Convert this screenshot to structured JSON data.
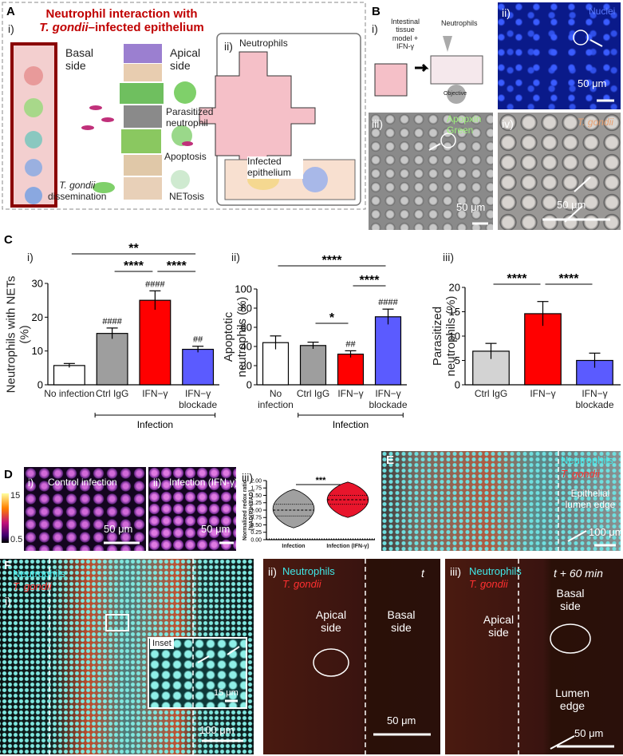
{
  "figure": {
    "A": {
      "letter": "A",
      "sub_i": "i)",
      "sub_ii": "ii)",
      "title_line1": "Neutrophil interaction with",
      "title_italic": "T. gondii",
      "title_rest": "–infected epithelium",
      "basal_side": "Basal side",
      "apical_side": "Apical side",
      "parasitized": "Parasitized neutrophil",
      "apoptosis": "Apoptosis",
      "netosis": "NETosis",
      "dissemination_italic": "T. gondii",
      "dissemination": "dissemination",
      "neutrophils": "Neutrophils",
      "infected_epithelium": "Infected epithelium"
    },
    "B": {
      "letter": "B",
      "sub_i": "i)",
      "model": "Intestinal tissue model + IFN-γ",
      "neutrophils": "Neutrophils",
      "objective": "Objective",
      "sub_ii": "ii)",
      "nuclei": "Nuclei",
      "scale_ii": "50 μm",
      "sub_iii": "iii)",
      "apopxin": "Apopxin Green",
      "scale_iii": "50 μm",
      "sub_iv": "iv)",
      "tgondii": "T. gondii",
      "scale_iv": "50 μm"
    },
    "C": {
      "letter": "C"
    },
    "D": {
      "letter": "D",
      "sub_i": "i)",
      "control": "Control infection",
      "scale_i": "50 μm",
      "sub_ii": "ii)",
      "ifn": "Infection (IFN-γ)",
      "scale_ii": "50 μm",
      "colorbar_max": 15,
      "colorbar_min": 0.5
    },
    "E": {
      "letter": "E",
      "neutrophils": "Neutrophils",
      "tgondii": "T. gondii",
      "edge": "Epithelial lumen edge",
      "scale": "100 μm"
    },
    "F": {
      "letter": "F",
      "sub_i": "i)",
      "neutrophils_i": "Neutrophils",
      "tgondii_i": "T. gondii",
      "inset": "Inset",
      "scale_inset": "15 μm",
      "scale_i": "100 μm",
      "sub_ii": "ii)",
      "neutrophils_ii": "Neutrophils",
      "tgondii_ii": "T. gondii",
      "time_ii": "t",
      "apical_ii": "Apical side",
      "basal_ii": "Basal side",
      "scale_ii": "50 μm",
      "sub_iii": "iii)",
      "neutrophils_iii": "Neutrophils",
      "tgondii_iii": "T. gondii",
      "time_iii": "t + 60 min",
      "basal_iii": "Basal side",
      "apical_iii": "Apical side",
      "lumen_iii": "Lumen edge",
      "scale_iii": "50 μm"
    }
  },
  "chart_data": [
    {
      "type": "bar",
      "panel": "i)",
      "ylabel": "Neutrophils with NETs (%)",
      "categories": [
        "No infection",
        "Ctrl IgG",
        "IFN−γ",
        "IFN−γ blockade"
      ],
      "values": [
        5.7,
        15.2,
        25,
        10.5
      ],
      "errors": [
        0.6,
        1.6,
        2.8,
        0.9
      ],
      "colors": [
        "#ffffff",
        "#9e9e9e",
        "#ff0000",
        "#5b5bff"
      ],
      "ylim": [
        0,
        30
      ],
      "yticks": [
        0,
        10,
        20,
        30
      ],
      "hash_marks": [
        {
          "index": 1,
          "label": "####"
        },
        {
          "index": 2,
          "label": "####"
        },
        {
          "index": 3,
          "label": "##"
        }
      ],
      "brackets": [
        {
          "from": 0,
          "to": 3,
          "label": "**"
        },
        {
          "from": 1,
          "to": 2,
          "label": "****"
        },
        {
          "from": 2,
          "to": 3,
          "label": "****"
        }
      ],
      "group": {
        "from": 1,
        "to": 3,
        "label": "Infection"
      }
    },
    {
      "type": "bar",
      "panel": "ii)",
      "ylabel": "Apoptotic neutrophils (%)",
      "categories": [
        "No infection",
        "Ctrl IgG",
        "IFN−γ",
        "IFN−γ blockade"
      ],
      "values": [
        44,
        41,
        32,
        71
      ],
      "errors": [
        7,
        3.5,
        3.5,
        8
      ],
      "colors": [
        "#ffffff",
        "#9e9e9e",
        "#ff0000",
        "#5b5bff"
      ],
      "ylim": [
        0,
        100
      ],
      "yticks": [
        0,
        20,
        40,
        60,
        80,
        100
      ],
      "hash_marks": [
        {
          "index": 2,
          "label": "##"
        },
        {
          "index": 3,
          "label": "####"
        }
      ],
      "brackets": [
        {
          "from": 0,
          "to": 3,
          "label": "****"
        },
        {
          "from": 2,
          "to": 3,
          "label": "****"
        },
        {
          "from": 1,
          "to": 2,
          "label": "*"
        }
      ],
      "group": {
        "from": 1,
        "to": 3,
        "label": "Infection"
      }
    },
    {
      "type": "bar",
      "panel": "iii)",
      "ylabel": "Parasitized neutrophils (%)",
      "categories": [
        "Ctrl IgG",
        "IFN−γ",
        "IFN−γ blockade"
      ],
      "values": [
        6.9,
        14.6,
        5.0
      ],
      "errors": [
        1.6,
        2.5,
        1.5
      ],
      "colors": [
        "#d3d3d3",
        "#ff0000",
        "#5b5bff"
      ],
      "ylim": [
        0,
        20
      ],
      "yticks": [
        0,
        5,
        10,
        15,
        20
      ],
      "brackets": [
        {
          "from": 0,
          "to": 1,
          "label": "****"
        },
        {
          "from": 1,
          "to": 2,
          "label": "****"
        }
      ]
    },
    {
      "type": "violin",
      "panel": "iii)",
      "ylabel": "Normalized redox ratio [NAD(P)H/FAD]",
      "categories": [
        "Infection",
        "Infection (IFN-γ)"
      ],
      "medians": [
        1.0,
        1.35
      ],
      "q1": [
        0.8,
        1.2
      ],
      "q3": [
        1.2,
        1.5
      ],
      "min": [
        0.4,
        0.75
      ],
      "max": [
        1.7,
        1.95
      ],
      "colors": [
        "#a0a0a0",
        "#e8152c"
      ],
      "ylim": [
        0,
        2
      ],
      "yticks": [
        {
          "value": 0,
          "label": "0.00"
        },
        {
          "value": 0.25,
          "label": "0.25"
        },
        {
          "value": 0.5,
          "label": "0.50"
        },
        {
          "value": 0.75,
          "label": "0.75"
        },
        {
          "value": 1,
          "label": "1.00"
        },
        {
          "value": 1.25,
          "label": "1.25"
        },
        {
          "value": 1.5,
          "label": "1.50"
        },
        {
          "value": 1.75,
          "label": "1.75"
        },
        {
          "value": 2,
          "label": "2.00"
        }
      ],
      "brackets": [
        {
          "from": 0,
          "to": 1,
          "label": "***"
        }
      ]
    }
  ]
}
